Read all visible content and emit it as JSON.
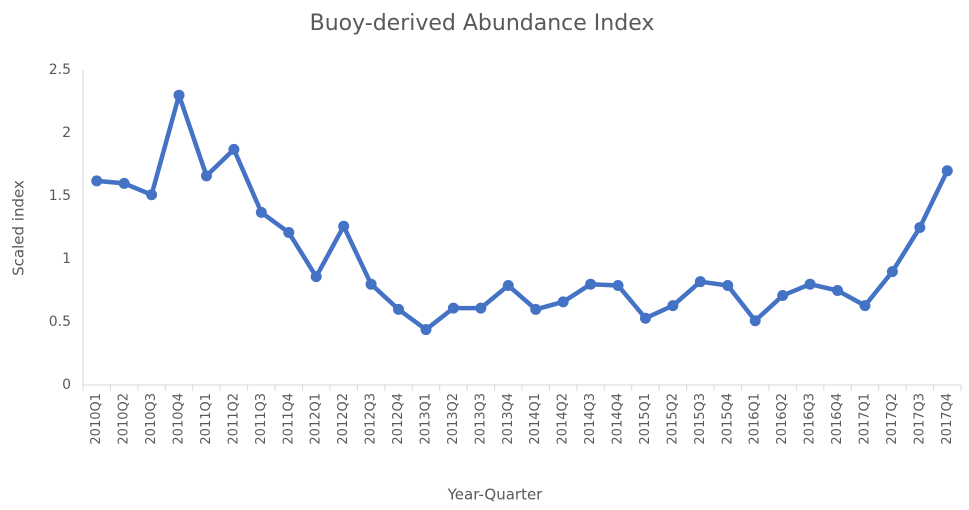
{
  "chart_data": {
    "type": "line",
    "title": "Buoy-derived Abundance Index",
    "x_label": "Year-Quarter",
    "y_label": "Scaled index",
    "categories": [
      "2010Q1",
      "2010Q2",
      "2010Q3",
      "2010Q4",
      "2011Q1",
      "2011Q2",
      "2011Q3",
      "2011Q4",
      "2012Q1",
      "2012Q2",
      "2012Q3",
      "2012Q4",
      "2013Q1",
      "2013Q2",
      "2013Q3",
      "2013Q4",
      "2014Q1",
      "2014Q2",
      "2014Q3",
      "2014Q4",
      "2015Q1",
      "2015Q2",
      "2015Q3",
      "2015Q4",
      "2016Q1",
      "2016Q2",
      "2016Q3",
      "2016Q4",
      "2017Q1",
      "2017Q2",
      "2017Q3",
      "2017Q4"
    ],
    "values": [
      1.62,
      1.6,
      1.51,
      2.3,
      1.66,
      1.87,
      1.37,
      1.21,
      0.86,
      1.26,
      0.8,
      0.6,
      0.44,
      0.61,
      0.61,
      0.79,
      0.6,
      0.66,
      0.8,
      0.79,
      0.53,
      0.63,
      0.82,
      0.79,
      0.51,
      0.71,
      0.8,
      0.75,
      0.63,
      0.9,
      1.25,
      1.7
    ],
    "color": "#4472c4",
    "ylim": [
      0,
      2.5
    ],
    "yticks": [
      0,
      0.5,
      1,
      1.5,
      2,
      2.5
    ],
    "grid": false
  }
}
